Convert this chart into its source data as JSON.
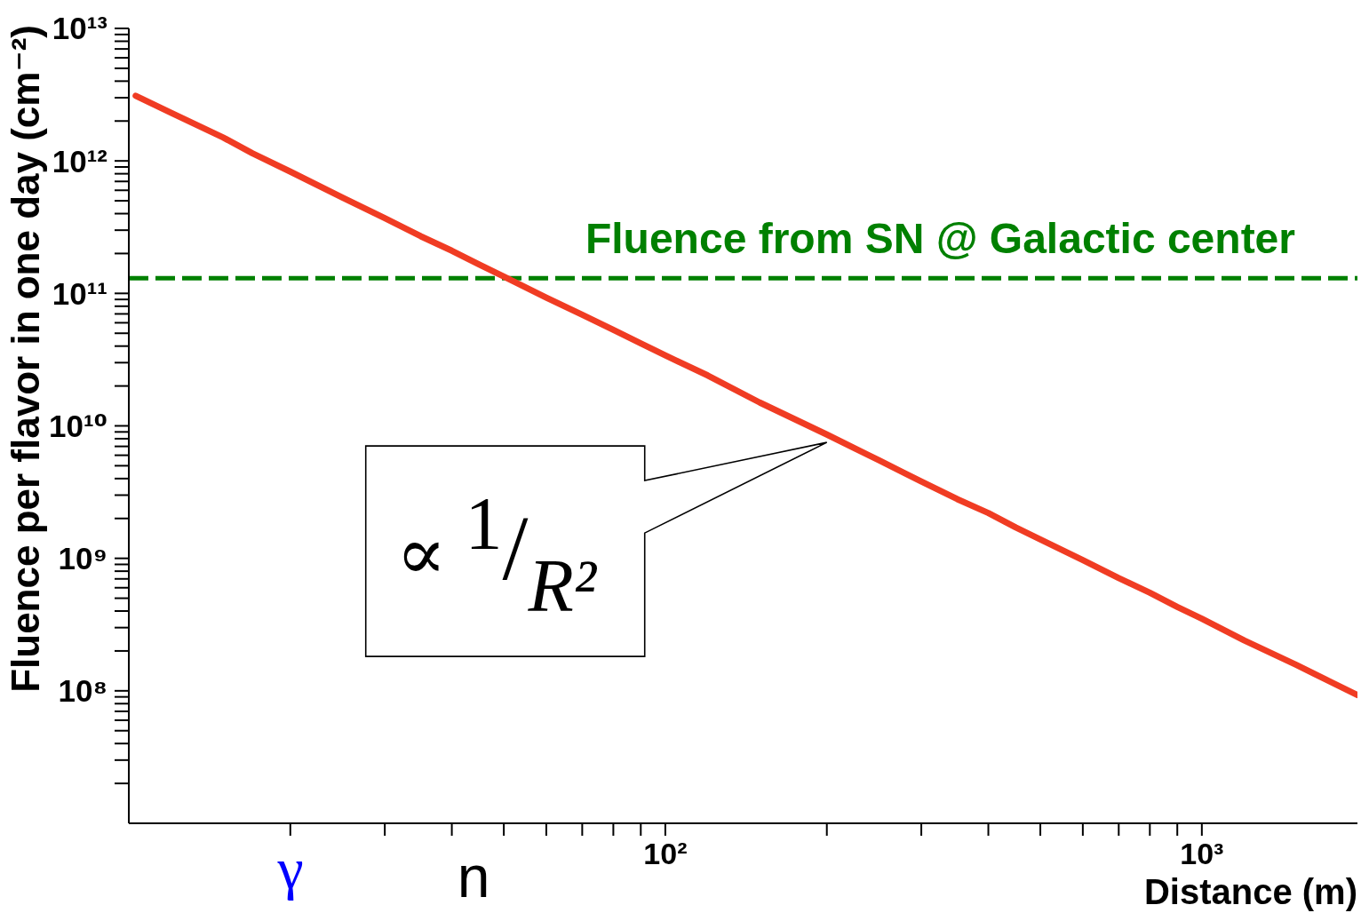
{
  "chart_data": {
    "type": "line",
    "xlabel": "Distance (m)",
    "ylabel": "Fluence per flavor in one day (cm⁻²)",
    "x": [
      10.3,
      12,
      15,
      17,
      20,
      25,
      30,
      35,
      40,
      45,
      50,
      60,
      70,
      80,
      90,
      100,
      120,
      150,
      200,
      250,
      300,
      350,
      400,
      450,
      500,
      600,
      700,
      800,
      900,
      1000,
      1200,
      1500,
      1700,
      1950
    ],
    "values": [
      3100000000000.0,
      2300000000000.0,
      1500000000000.0,
      1140000000000.0,
      830000000000.0,
      530000000000.0,
      370000000000.0,
      270000000000.0,
      210000000000.0,
      165000000000.0,
      134000000000.0,
      93000000000.0,
      69000000000.0,
      53000000000.0,
      42000000000.0,
      34000000000.0,
      24000000000.0,
      15000000000.0,
      8600000000.0,
      5500000000.0,
      3800000000.0,
      2800000000.0,
      2200000000.0,
      1710000000.0,
      1390000000.0,
      970000000.0,
      710000000.0,
      550000000.0,
      430000000.0,
      350000000.0,
      240000000.0,
      157000000.0,
      122000000.0,
      93000000.0
    ],
    "color": "#f03c23",
    "marker": "none",
    "log": "xy",
    "xlim": [
      10,
      1950
    ],
    "ylim": [
      10000000.0,
      10000000000000.0
    ],
    "xticks": [
      {
        "value": 20,
        "label": null
      },
      {
        "value": 30,
        "label": null
      },
      {
        "value": 40,
        "label": null
      },
      {
        "value": 50,
        "label": null
      },
      {
        "value": 60,
        "label": null
      },
      {
        "value": 70,
        "label": null
      },
      {
        "value": 80,
        "label": null
      },
      {
        "value": 90,
        "label": null
      },
      {
        "value": 100,
        "label": "10²"
      },
      {
        "value": 200,
        "label": null
      },
      {
        "value": 300,
        "label": null
      },
      {
        "value": 400,
        "label": null
      },
      {
        "value": 500,
        "label": null
      },
      {
        "value": 600,
        "label": null
      },
      {
        "value": 700,
        "label": null
      },
      {
        "value": 800,
        "label": null
      },
      {
        "value": 900,
        "label": null
      },
      {
        "value": 1000,
        "label": "10³"
      }
    ],
    "yticks": [
      {
        "value": 20000000.0,
        "label": null
      },
      {
        "value": 30000000.0,
        "label": null
      },
      {
        "value": 40000000.0,
        "label": null
      },
      {
        "value": 50000000.0,
        "label": null
      },
      {
        "value": 60000000.0,
        "label": null
      },
      {
        "value": 70000000.0,
        "label": null
      },
      {
        "value": 80000000.0,
        "label": null
      },
      {
        "value": 90000000.0,
        "label": null
      },
      {
        "value": 100000000.0,
        "label": "10⁸"
      },
      {
        "value": 200000000.0,
        "label": null
      },
      {
        "value": 300000000.0,
        "label": null
      },
      {
        "value": 400000000.0,
        "label": null
      },
      {
        "value": 500000000.0,
        "label": null
      },
      {
        "value": 600000000.0,
        "label": null
      },
      {
        "value": 700000000.0,
        "label": null
      },
      {
        "value": 800000000.0,
        "label": null
      },
      {
        "value": 900000000.0,
        "label": null
      },
      {
        "value": 1000000000.0,
        "label": "10⁹"
      },
      {
        "value": 2000000000.0,
        "label": null
      },
      {
        "value": 3000000000.0,
        "label": null
      },
      {
        "value": 4000000000.0,
        "label": null
      },
      {
        "value": 5000000000.0,
        "label": null
      },
      {
        "value": 6000000000.0,
        "label": null
      },
      {
        "value": 7000000000.0,
        "label": null
      },
      {
        "value": 8000000000.0,
        "label": null
      },
      {
        "value": 9000000000.0,
        "label": null
      },
      {
        "value": 10000000000.0,
        "label": "10¹⁰"
      },
      {
        "value": 20000000000.0,
        "label": null
      },
      {
        "value": 30000000000.0,
        "label": null
      },
      {
        "value": 40000000000.0,
        "label": null
      },
      {
        "value": 50000000000.0,
        "label": null
      },
      {
        "value": 60000000000.0,
        "label": null
      },
      {
        "value": 70000000000.0,
        "label": null
      },
      {
        "value": 80000000000.0,
        "label": null
      },
      {
        "value": 90000000000.0,
        "label": null
      },
      {
        "value": 100000000000.0,
        "label": "10¹¹"
      },
      {
        "value": 200000000000.0,
        "label": null
      },
      {
        "value": 300000000000.0,
        "label": null
      },
      {
        "value": 400000000000.0,
        "label": null
      },
      {
        "value": 500000000000.0,
        "label": null
      },
      {
        "value": 600000000000.0,
        "label": null
      },
      {
        "value": 700000000000.0,
        "label": null
      },
      {
        "value": 800000000000.0,
        "label": null
      },
      {
        "value": 900000000000.0,
        "label": null
      },
      {
        "value": 1000000000000.0,
        "label": "10¹²"
      },
      {
        "value": 2000000000000.0,
        "label": null
      },
      {
        "value": 3000000000000.0,
        "label": null
      },
      {
        "value": 4000000000000.0,
        "label": null
      },
      {
        "value": 5000000000000.0,
        "label": null
      },
      {
        "value": 6000000000000.0,
        "label": null
      },
      {
        "value": 7000000000000.0,
        "label": null
      },
      {
        "value": 8000000000000.0,
        "label": null
      },
      {
        "value": 9000000000000.0,
        "label": null
      },
      {
        "value": 10000000000000.0,
        "label": "10¹³"
      }
    ],
    "ref_lines": [
      {
        "axis": "y",
        "value": 130000000000.0,
        "label": "Fluence from SN @ Galactic center",
        "color": "#008000",
        "line_style": "dashed"
      }
    ],
    "annotations": [
      {
        "text": "∝ 1/R²",
        "x": 200,
        "y": 7500000000.0
      },
      "γ",
      "n"
    ]
  }
}
